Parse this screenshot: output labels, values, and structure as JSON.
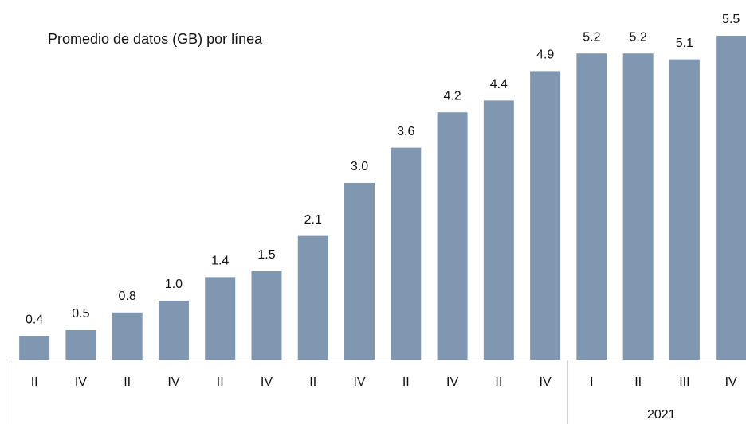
{
  "chart_data": {
    "type": "bar",
    "title": "Promedio de datos (GB) por línea",
    "groups": [
      {
        "label": null,
        "categories": [
          "II",
          "IV",
          "II",
          "IV",
          "II",
          "IV",
          "II",
          "IV",
          "II",
          "IV",
          "II",
          "IV"
        ]
      },
      {
        "label": "2021",
        "categories": [
          "I",
          "II",
          "III",
          "IV"
        ]
      }
    ],
    "values": [
      0.4,
      0.5,
      0.8,
      1.0,
      1.4,
      1.5,
      2.1,
      3.0,
      3.6,
      4.2,
      4.4,
      4.9,
      5.2,
      5.2,
      5.1,
      5.5
    ],
    "value_labels": [
      "0.4",
      "0.5",
      "0.8",
      "1.0",
      "1.4",
      "1.5",
      "2.1",
      "3.0",
      "3.6",
      "4.2",
      "4.4",
      "4.9",
      "5.2",
      "5.2",
      "5.1",
      "5.5"
    ],
    "color": "#8097b1",
    "ylim": [
      0,
      5.5
    ]
  }
}
